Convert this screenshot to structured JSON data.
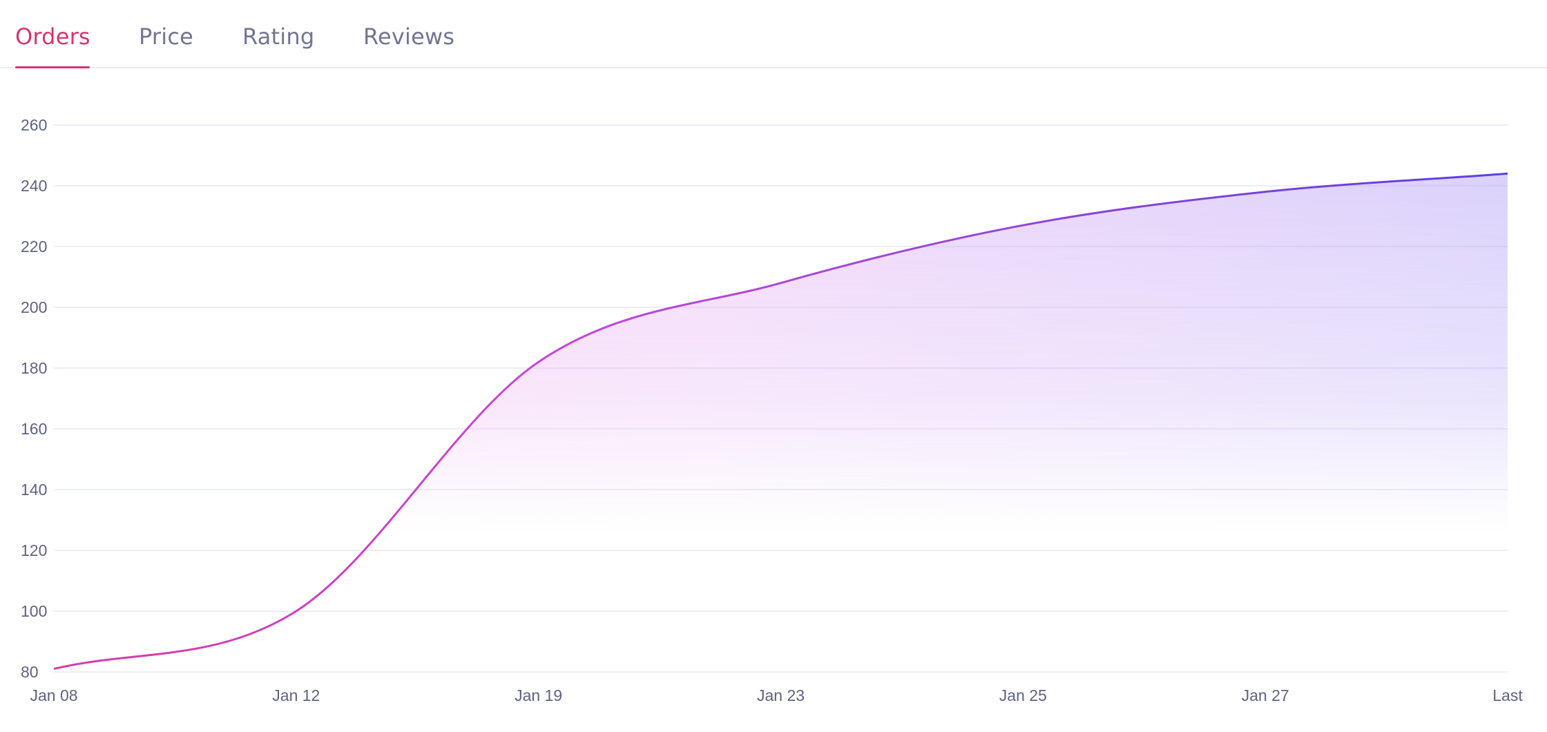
{
  "tabs": [
    {
      "label": "Orders",
      "active": true
    },
    {
      "label": "Price",
      "active": false
    },
    {
      "label": "Rating",
      "active": false
    },
    {
      "label": "Reviews",
      "active": false
    }
  ],
  "colors": {
    "active_tab": "#d5356f",
    "inactive_tab": "#717592",
    "line_start": "#d63aa8",
    "line_end": "#5b3fe0",
    "grid": "#e6e8f2"
  },
  "chart_data": {
    "type": "area",
    "title": "",
    "xlabel": "",
    "ylabel": "",
    "categories": [
      "Jan 08",
      "Jan 12",
      "Jan 19",
      "Jan 23",
      "Jan 25",
      "Jan 27",
      "Last"
    ],
    "x_ticks": [
      "Jan 08",
      "Jan 12",
      "Jan 19",
      "Jan 23",
      "Jan 25",
      "Jan 27",
      "Last"
    ],
    "y_ticks": [
      80,
      100,
      120,
      140,
      160,
      180,
      200,
      220,
      240,
      260
    ],
    "ylim": [
      80,
      260
    ],
    "grid": true,
    "legend": "none",
    "series": [
      {
        "values": [
          81,
          100,
          182,
          208,
          227,
          238,
          244
        ]
      }
    ]
  }
}
